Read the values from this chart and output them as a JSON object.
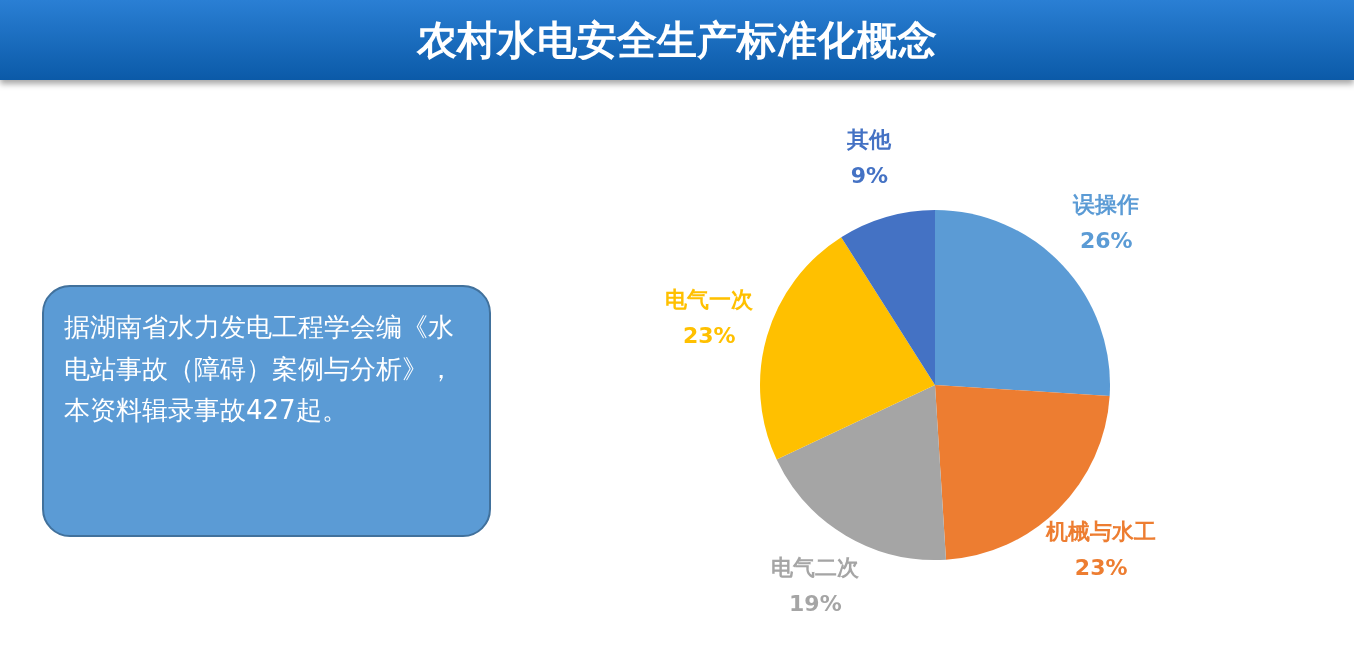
{
  "chart_data": {
    "type": "pie",
    "title": "农村水电安全生产标准化概念",
    "categories": [
      "误操作",
      "机械与水工",
      "电气二次",
      "电气一次",
      "其他"
    ],
    "values": [
      26,
      23,
      19,
      23,
      9
    ],
    "value_labels": [
      "26%",
      "23%",
      "19%",
      "23%",
      "9%"
    ],
    "colors": [
      "#5b9bd5",
      "#ed7d31",
      "#a5a5a5",
      "#ffc000",
      "#4472c4"
    ],
    "legend": false,
    "annotations": [
      "据湖南省水力发电工程学会编《水电站事故（障碍）案例与分析》，本资料辑录事故427起。"
    ]
  }
}
